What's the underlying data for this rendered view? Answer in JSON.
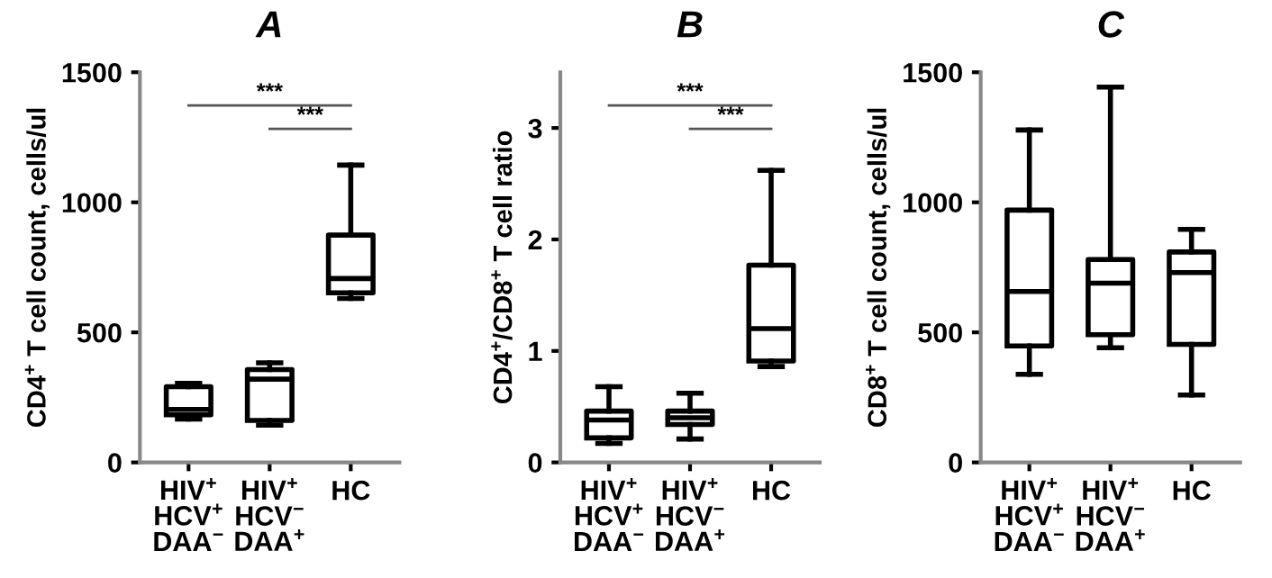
{
  "chart_data": [
    {
      "type": "box",
      "title": "A",
      "ylabel": "CD4$^{+}$ T cell count, cells/ul",
      "categories": [
        "HIV$^{+}$\nHCV$^{+}$\nDAA$^{−}$",
        "HIV$^{+}$\nHCV$^{−}$\nDAA$^{+}$",
        "HC"
      ],
      "ylim": [
        0,
        1500
      ],
      "yticks": [
        0,
        500,
        1000,
        1500
      ],
      "grid": false,
      "annotations": [
        "***",
        "***"
      ],
      "boxes": [
        {
          "low": 167,
          "q1": 183,
          "median": 204,
          "q3": 291,
          "high": 304
        },
        {
          "low": 143,
          "q1": 161,
          "median": 320,
          "q3": 357,
          "high": 383
        },
        {
          "low": 630,
          "q1": 652,
          "median": 707,
          "q3": 874,
          "high": 1143
        }
      ]
    },
    {
      "type": "box",
      "title": "B",
      "ylabel": "CD4$^{+}$/CD8$^{+}$ T cell ratio",
      "categories": [
        "HIV$^{+}$\nHCV$^{+}$\nDAA$^{−}$",
        "HIV$^{+}$\nHCV$^{−}$\nDAA$^{+}$",
        "HC"
      ],
      "ylim": [
        0,
        3.5
      ],
      "yticks": [
        0,
        1,
        2,
        3
      ],
      "grid": false,
      "annotations": [
        "***",
        "***"
      ],
      "boxes": [
        {
          "low": 0.17,
          "q1": 0.22,
          "median": 0.38,
          "q3": 0.46,
          "high": 0.68
        },
        {
          "low": 0.21,
          "q1": 0.34,
          "median": 0.4,
          "q3": 0.46,
          "high": 0.62
        },
        {
          "low": 0.86,
          "q1": 0.91,
          "median": 1.2,
          "q3": 1.77,
          "high": 2.62
        }
      ]
    },
    {
      "type": "box",
      "title": "C",
      "ylabel": "CD8$^{+}$ T cell count, cells/ul",
      "categories": [
        "HIV$^{+}$\nHCV$^{+}$\nDAA$^{−}$",
        "HIV$^{+}$\nHCV$^{−}$\nDAA$^{+}$",
        "HC"
      ],
      "ylim": [
        0,
        1500
      ],
      "yticks": [
        0,
        500,
        1000,
        1500
      ],
      "grid": false,
      "boxes": [
        {
          "low": 339,
          "q1": 448,
          "median": 657,
          "q3": 970,
          "high": 1278
        },
        {
          "low": 441,
          "q1": 491,
          "median": 689,
          "q3": 780,
          "high": 1443
        },
        {
          "low": 259,
          "q1": 454,
          "median": 730,
          "q3": 809,
          "high": 896
        }
      ]
    }
  ]
}
